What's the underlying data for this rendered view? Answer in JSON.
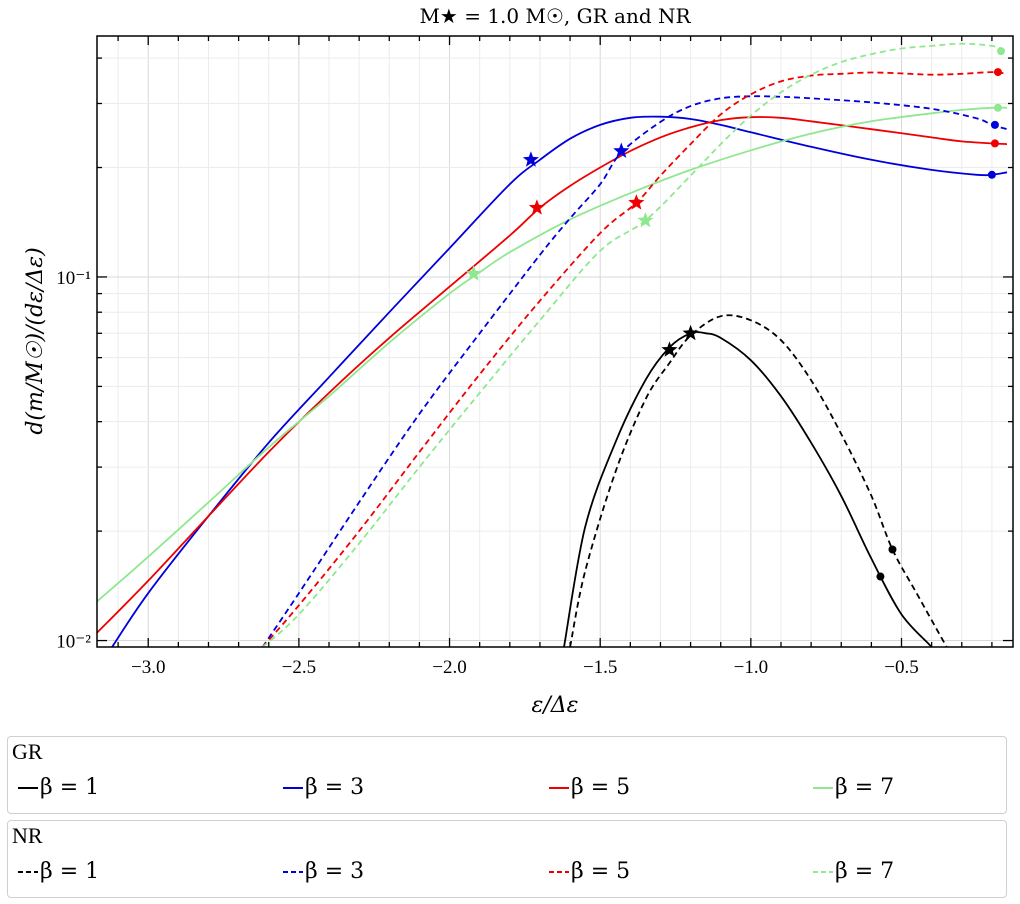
{
  "chart_data": {
    "type": "line",
    "title": "M★ = 1.0 M☉, GR and NR",
    "xlabel": "ε/Δε",
    "ylabel": "d(m/M☉)/(dε/Δε)",
    "xlim": [
      -3.17,
      -0.13
    ],
    "ylim": [
      0.0096,
      0.46
    ],
    "yscale": "log",
    "grid": true,
    "x_ticks": [
      -3.0,
      -2.5,
      -2.0,
      -1.5,
      -1.0,
      -0.5
    ],
    "x_tick_labels": [
      "−3.0",
      "−2.5",
      "−2.0",
      "−1.5",
      "−1.0",
      "−0.5"
    ],
    "y_ticks": [
      0.01,
      0.1
    ],
    "y_tick_labels": [
      "10⁻²",
      "10⁻¹"
    ],
    "legend_placement": "below",
    "legend_groups": [
      {
        "title": "GR",
        "entries": [
          "β = 1",
          "β = 3",
          "β = 5",
          "β = 7"
        ]
      },
      {
        "title": "NR",
        "entries": [
          "β = 1",
          "β = 3",
          "β = 5",
          "β = 7"
        ]
      }
    ],
    "series": [
      {
        "group": "GR",
        "name": "β = 1",
        "color": "#000000",
        "dash": "solid",
        "x": [
          -1.62,
          -1.55,
          -1.45,
          -1.35,
          -1.27,
          -1.2,
          -1.15,
          -1.1,
          -1.0,
          -0.9,
          -0.8,
          -0.7,
          -0.6,
          -0.5,
          -0.4,
          -0.35
        ],
        "y": [
          0.0096,
          0.0205,
          0.035,
          0.052,
          0.064,
          0.07,
          0.07,
          0.068,
          0.059,
          0.047,
          0.035,
          0.025,
          0.0168,
          0.0118,
          0.0096,
          0.0085
        ],
        "star": [
          -1.2,
          0.07
        ],
        "dot": [
          -0.57,
          0.015
        ]
      },
      {
        "group": "GR",
        "name": "β = 3",
        "color": "#0000dd",
        "dash": "solid",
        "x": [
          -3.12,
          -3.0,
          -2.8,
          -2.6,
          -2.4,
          -2.2,
          -2.0,
          -1.8,
          -1.7,
          -1.6,
          -1.5,
          -1.4,
          -1.3,
          -1.2,
          -1.1,
          -1.0,
          -0.8,
          -0.6,
          -0.4,
          -0.25,
          -0.2,
          -0.15
        ],
        "y": [
          0.0096,
          0.0135,
          0.022,
          0.035,
          0.053,
          0.08,
          0.12,
          0.18,
          0.21,
          0.24,
          0.262,
          0.274,
          0.276,
          0.272,
          0.262,
          0.25,
          0.228,
          0.21,
          0.197,
          0.191,
          0.191,
          0.194
        ],
        "star": [
          -1.73,
          0.21
        ],
        "dot": [
          -0.2,
          0.191
        ]
      },
      {
        "group": "GR",
        "name": "β = 5",
        "color": "#ee0000",
        "dash": "solid",
        "x": [
          -3.17,
          -3.0,
          -2.8,
          -2.6,
          -2.4,
          -2.2,
          -2.0,
          -1.8,
          -1.7,
          -1.6,
          -1.5,
          -1.4,
          -1.3,
          -1.2,
          -1.1,
          -1.0,
          -0.9,
          -0.8,
          -0.6,
          -0.4,
          -0.3,
          -0.2,
          -0.15
        ],
        "y": [
          0.0105,
          0.0146,
          0.022,
          0.033,
          0.048,
          0.068,
          0.094,
          0.13,
          0.155,
          0.178,
          0.2,
          0.222,
          0.242,
          0.258,
          0.27,
          0.275,
          0.274,
          0.268,
          0.255,
          0.242,
          0.236,
          0.233,
          0.232
        ],
        "star": [
          -1.71,
          0.155
        ],
        "dot": [
          -0.19,
          0.233
        ]
      },
      {
        "group": "GR",
        "name": "β = 7",
        "color": "#8fe88f",
        "dash": "solid",
        "x": [
          -3.17,
          -3.0,
          -2.8,
          -2.6,
          -2.4,
          -2.2,
          -2.0,
          -1.9,
          -1.8,
          -1.6,
          -1.4,
          -1.2,
          -1.0,
          -0.8,
          -0.6,
          -0.4,
          -0.3,
          -0.2,
          -0.15
        ],
        "y": [
          0.0128,
          0.017,
          0.024,
          0.034,
          0.047,
          0.066,
          0.09,
          0.103,
          0.117,
          0.144,
          0.17,
          0.197,
          0.223,
          0.248,
          0.268,
          0.282,
          0.288,
          0.292,
          0.292
        ],
        "star": [
          -1.92,
          0.102
        ],
        "dot": [
          -0.18,
          0.292
        ]
      },
      {
        "group": "NR",
        "name": "β = 1",
        "color": "#000000",
        "dash": "dashed",
        "x": [
          -1.6,
          -1.55,
          -1.45,
          -1.35,
          -1.27,
          -1.2,
          -1.1,
          -1.0,
          -0.9,
          -0.8,
          -0.7,
          -0.6,
          -0.53,
          -0.45,
          -0.35,
          -0.3
        ],
        "y": [
          0.0096,
          0.0155,
          0.029,
          0.046,
          0.058,
          0.069,
          0.078,
          0.076,
          0.067,
          0.052,
          0.037,
          0.025,
          0.0178,
          0.0135,
          0.0096,
          0.0082
        ],
        "star": [
          -1.27,
          0.063
        ],
        "dot": [
          -0.53,
          0.0178
        ]
      },
      {
        "group": "NR",
        "name": "β = 3",
        "color": "#0000dd",
        "dash": "dashed",
        "x": [
          -2.62,
          -2.5,
          -2.3,
          -2.1,
          -1.9,
          -1.7,
          -1.6,
          -1.5,
          -1.43,
          -1.3,
          -1.2,
          -1.1,
          -1.0,
          -0.9,
          -0.8,
          -0.6,
          -0.4,
          -0.25,
          -0.2,
          -0.15
        ],
        "y": [
          0.0096,
          0.0135,
          0.024,
          0.042,
          0.07,
          0.115,
          0.145,
          0.18,
          0.22,
          0.267,
          0.295,
          0.31,
          0.314,
          0.313,
          0.31,
          0.302,
          0.29,
          0.273,
          0.262,
          0.255
        ],
        "star": [
          -1.43,
          0.222
        ],
        "dot": [
          -0.19,
          0.262
        ]
      },
      {
        "group": "NR",
        "name": "β = 5",
        "color": "#ee0000",
        "dash": "dashed",
        "x": [
          -2.62,
          -2.5,
          -2.3,
          -2.1,
          -1.9,
          -1.7,
          -1.5,
          -1.38,
          -1.3,
          -1.2,
          -1.1,
          -1.0,
          -0.9,
          -0.8,
          -0.7,
          -0.6,
          -0.5,
          -0.4,
          -0.3,
          -0.2,
          -0.15
        ],
        "y": [
          0.0096,
          0.0125,
          0.02,
          0.033,
          0.054,
          0.086,
          0.132,
          0.16,
          0.19,
          0.232,
          0.28,
          0.318,
          0.345,
          0.358,
          0.362,
          0.365,
          0.363,
          0.36,
          0.362,
          0.366,
          0.362
        ],
        "star": [
          -1.38,
          0.16
        ],
        "dot": [
          -0.18,
          0.366
        ]
      },
      {
        "group": "NR",
        "name": "β = 7",
        "color": "#8fe88f",
        "dash": "dashed",
        "x": [
          -2.62,
          -2.5,
          -2.3,
          -2.1,
          -1.9,
          -1.7,
          -1.5,
          -1.35,
          -1.2,
          -1.1,
          -1.0,
          -0.9,
          -0.8,
          -0.7,
          -0.6,
          -0.5,
          -0.4,
          -0.3,
          -0.2,
          -0.15
        ],
        "y": [
          0.0096,
          0.0118,
          0.0185,
          0.03,
          0.048,
          0.076,
          0.118,
          0.143,
          0.19,
          0.232,
          0.278,
          0.322,
          0.36,
          0.39,
          0.41,
          0.425,
          0.432,
          0.438,
          0.432,
          0.418
        ],
        "star": [
          -1.35,
          0.143
        ],
        "dot": [
          -0.17,
          0.418
        ]
      }
    ]
  }
}
